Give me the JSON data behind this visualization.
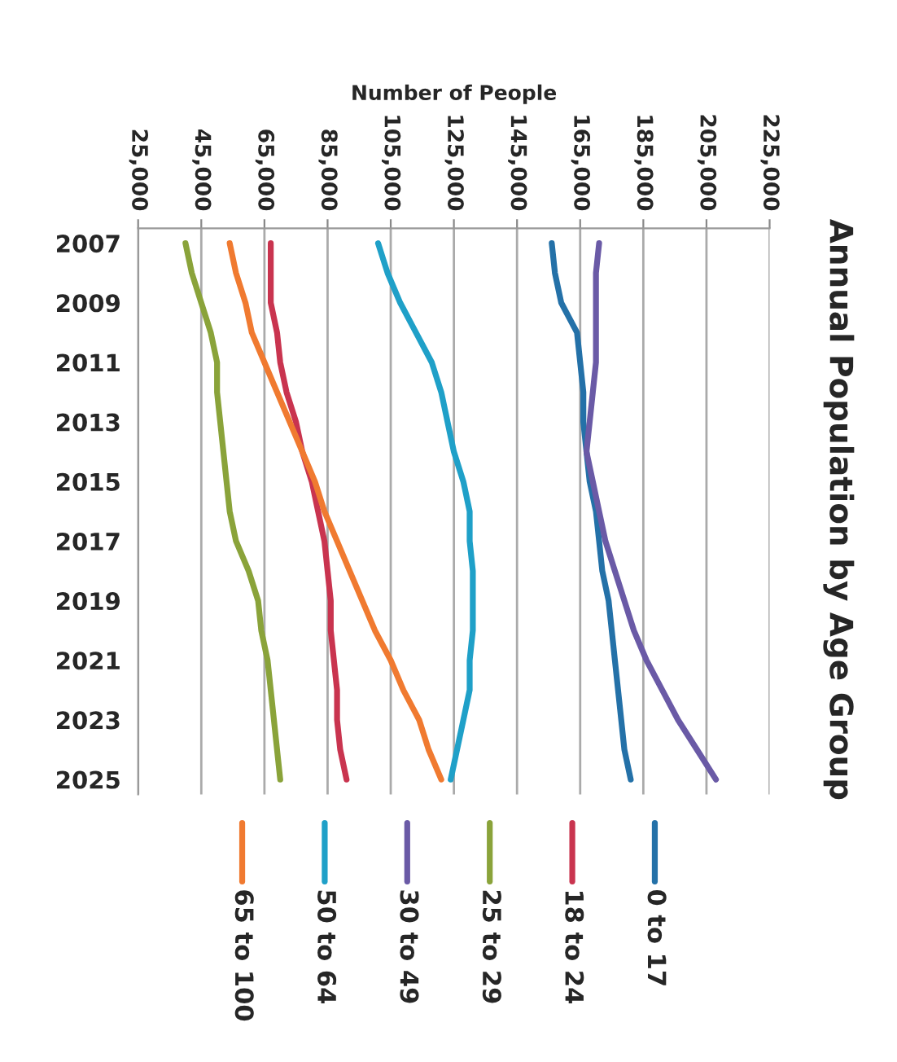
{
  "chart_data": {
    "type": "line",
    "orientation": "horizontal",
    "title": "Annual Population by Age Group",
    "xlabel": "Number of People",
    "categories": [
      "2007",
      null,
      "2009",
      null,
      "2011",
      null,
      "2013",
      null,
      "2015",
      null,
      "2017",
      null,
      "2019",
      null,
      "2021",
      null,
      "2023",
      null,
      "2025"
    ],
    "series": [
      {
        "name": "0 to 17",
        "color": "#2471a8",
        "values": [
          156000,
          157000,
          159000,
          164000,
          165000,
          166000,
          166000,
          167000,
          168000,
          170000,
          171000,
          172000,
          174000,
          175000,
          176000,
          177000,
          178000,
          179000,
          181000
        ]
      },
      {
        "name": "18 to 24",
        "color": "#c9344f",
        "values": [
          67000,
          67000,
          67000,
          69000,
          70000,
          72000,
          75000,
          77000,
          80000,
          82000,
          84000,
          85000,
          86000,
          86000,
          87000,
          88000,
          88000,
          89000,
          91000
        ]
      },
      {
        "name": "25 to 29",
        "color": "#8aa33a",
        "values": [
          40000,
          42000,
          45000,
          48000,
          50000,
          50000,
          51000,
          52000,
          53000,
          54000,
          56000,
          60000,
          63000,
          64000,
          66000,
          67000,
          68000,
          69000,
          70000
        ]
      },
      {
        "name": "30 to 49",
        "color": "#6a5aa6",
        "values": [
          171000,
          170000,
          170000,
          170000,
          170000,
          169000,
          168000,
          167000,
          169000,
          171000,
          173000,
          176000,
          179000,
          182000,
          186000,
          191000,
          196000,
          202000,
          208000
        ]
      },
      {
        "name": "50 to 64",
        "color": "#1fa0c8",
        "values": [
          101000,
          104000,
          108000,
          113000,
          118000,
          121000,
          123000,
          125000,
          128000,
          130000,
          130000,
          131000,
          131000,
          131000,
          130000,
          130000,
          128000,
          126000,
          124000
        ]
      },
      {
        "name": "65 to 100",
        "color": "#f07a30",
        "values": [
          54000,
          56000,
          59000,
          61000,
          65000,
          69000,
          73000,
          77000,
          81000,
          84000,
          88000,
          92000,
          96000,
          100000,
          105000,
          109000,
          114000,
          117000,
          121000
        ]
      }
    ],
    "xlim": [
      25000,
      225000
    ],
    "xticks": [
      {
        "value": 25000,
        "label": "25,000"
      },
      {
        "value": 45000,
        "label": "45,000"
      },
      {
        "value": 65000,
        "label": "65,000"
      },
      {
        "value": 85000,
        "label": "85,000"
      },
      {
        "value": 105000,
        "label": "105,000"
      },
      {
        "value": 125000,
        "label": "125,000"
      },
      {
        "value": 145000,
        "label": "145,000"
      },
      {
        "value": 165000,
        "label": "165,000"
      },
      {
        "value": 185000,
        "label": "185,000"
      },
      {
        "value": 205000,
        "label": "205,000"
      },
      {
        "value": 225000,
        "label": "225,000"
      }
    ],
    "grid": "x",
    "legend": "bottom",
    "marker": "none",
    "line_style": "solid"
  }
}
